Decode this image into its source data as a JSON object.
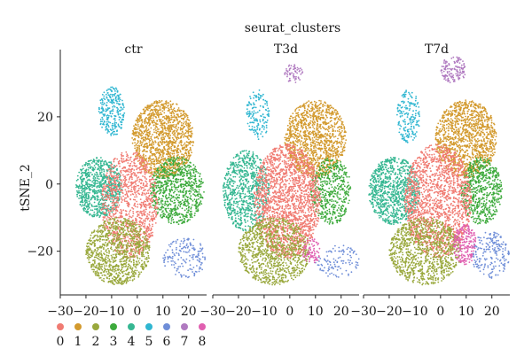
{
  "chart_data": {
    "type": "scatter",
    "title": "seurat_clusters",
    "ylabel": "tSNE_2",
    "xlabel": "",
    "panels": [
      "ctr",
      "T3d",
      "T7d"
    ],
    "xlim": [
      -30,
      27
    ],
    "ylim": [
      -33,
      40
    ],
    "xticks": [
      -30,
      -20,
      -10,
      0,
      10,
      20
    ],
    "yticks": [
      -20,
      0,
      20
    ],
    "legend": {
      "position": "bottom-left",
      "labels": [
        "0",
        "1",
        "2",
        "3",
        "4",
        "5",
        "6",
        "7",
        "8"
      ]
    },
    "series": [
      {
        "name": "0",
        "color": "#f07b72"
      },
      {
        "name": "1",
        "color": "#d39a2e"
      },
      {
        "name": "2",
        "color": "#99a83c"
      },
      {
        "name": "3",
        "color": "#3daa3c"
      },
      {
        "name": "4",
        "color": "#36b792"
      },
      {
        "name": "5",
        "color": "#2fb6d1"
      },
      {
        "name": "6",
        "color": "#6f8ed8"
      },
      {
        "name": "7",
        "color": "#b07ac0"
      },
      {
        "name": "8",
        "color": "#e05fb0"
      }
    ],
    "cluster_regions": [
      {
        "panel": "ctr",
        "series": "1",
        "x": [
          -2,
          22
        ],
        "y": [
          2,
          25
        ],
        "n": 1300
      },
      {
        "panel": "ctr",
        "series": "5",
        "x": [
          -15,
          -5
        ],
        "y": [
          14,
          29
        ],
        "n": 260
      },
      {
        "panel": "ctr",
        "series": "3",
        "x": [
          5,
          26
        ],
        "y": [
          -12,
          8
        ],
        "n": 800
      },
      {
        "panel": "ctr",
        "series": "4",
        "x": [
          -24,
          -6
        ],
        "y": [
          -10,
          8
        ],
        "n": 800
      },
      {
        "panel": "ctr",
        "series": "0",
        "x": [
          -14,
          8
        ],
        "y": [
          -22,
          10
        ],
        "n": 1100
      },
      {
        "panel": "ctr",
        "series": "2",
        "x": [
          -20,
          5
        ],
        "y": [
          -30,
          -10
        ],
        "n": 1000
      },
      {
        "panel": "ctr",
        "series": "6",
        "x": [
          10,
          27
        ],
        "y": [
          -28,
          -16
        ],
        "n": 170
      },
      {
        "panel": "T3d",
        "series": "1",
        "x": [
          -2,
          22
        ],
        "y": [
          2,
          25
        ],
        "n": 1200
      },
      {
        "panel": "T3d",
        "series": "5",
        "x": [
          -17,
          -8
        ],
        "y": [
          13,
          28
        ],
        "n": 150
      },
      {
        "panel": "T3d",
        "series": "7",
        "x": [
          -2,
          5
        ],
        "y": [
          30,
          36
        ],
        "n": 60
      },
      {
        "panel": "T3d",
        "series": "3",
        "x": [
          8,
          24
        ],
        "y": [
          -12,
          8
        ],
        "n": 500
      },
      {
        "panel": "T3d",
        "series": "4",
        "x": [
          -26,
          -8
        ],
        "y": [
          -14,
          10
        ],
        "n": 800
      },
      {
        "panel": "T3d",
        "series": "0",
        "x": [
          -14,
          12
        ],
        "y": [
          -22,
          12
        ],
        "n": 1900
      },
      {
        "panel": "T3d",
        "series": "2",
        "x": [
          -20,
          8
        ],
        "y": [
          -30,
          -10
        ],
        "n": 1000
      },
      {
        "panel": "T3d",
        "series": "6",
        "x": [
          10,
          27
        ],
        "y": [
          -28,
          -18
        ],
        "n": 110
      },
      {
        "panel": "T3d",
        "series": "8",
        "x": [
          5,
          12
        ],
        "y": [
          -24,
          -16
        ],
        "n": 80
      },
      {
        "panel": "T7d",
        "series": "1",
        "x": [
          -2,
          22
        ],
        "y": [
          2,
          25
        ],
        "n": 1200
      },
      {
        "panel": "T7d",
        "series": "5",
        "x": [
          -17,
          -8
        ],
        "y": [
          12,
          28
        ],
        "n": 180
      },
      {
        "panel": "T7d",
        "series": "7",
        "x": [
          0,
          10
        ],
        "y": [
          30,
          38
        ],
        "n": 140
      },
      {
        "panel": "T7d",
        "series": "3",
        "x": [
          8,
          24
        ],
        "y": [
          -12,
          8
        ],
        "n": 600
      },
      {
        "panel": "T7d",
        "series": "4",
        "x": [
          -28,
          -8
        ],
        "y": [
          -12,
          8
        ],
        "n": 900
      },
      {
        "panel": "T7d",
        "series": "0",
        "x": [
          -14,
          12
        ],
        "y": [
          -22,
          12
        ],
        "n": 1600
      },
      {
        "panel": "T7d",
        "series": "2",
        "x": [
          -20,
          8
        ],
        "y": [
          -30,
          -10
        ],
        "n": 1000
      },
      {
        "panel": "T7d",
        "series": "6",
        "x": [
          12,
          27
        ],
        "y": [
          -28,
          -14
        ],
        "n": 200
      },
      {
        "panel": "T7d",
        "series": "8",
        "x": [
          5,
          14
        ],
        "y": [
          -24,
          -12
        ],
        "n": 220
      }
    ]
  }
}
